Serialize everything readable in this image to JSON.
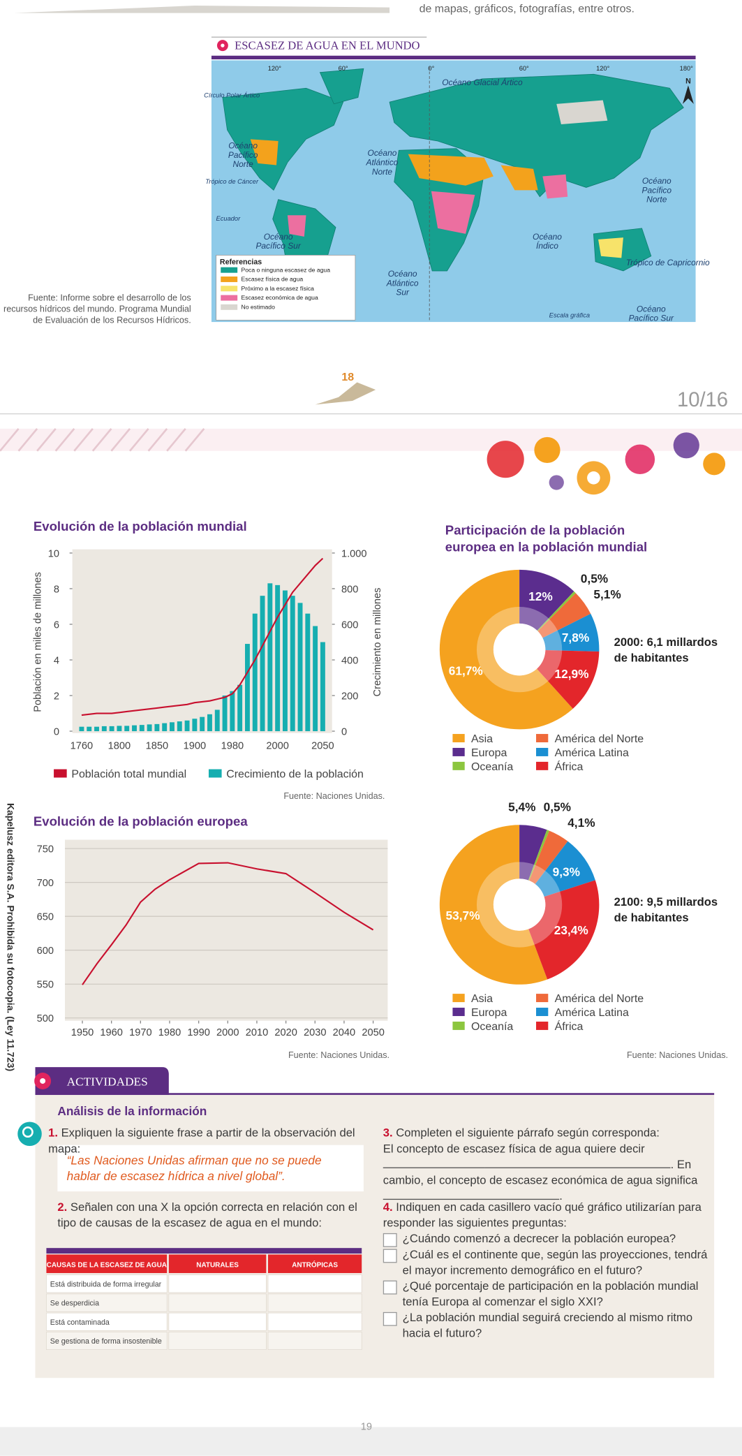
{
  "top_text": "de mapas, gráficos, fotografías, entre otros.",
  "map": {
    "title": "ESCASEZ DE AGUA EN EL MUNDO",
    "labels": [
      [
        "Océano Glacial Ártico"
      ],
      [
        "Círculo Polar Ártico"
      ],
      [
        "Océano",
        "Pacífico",
        "Norte"
      ],
      [
        "Trópico de Cáncer"
      ],
      [
        "Océano",
        "Atlántico",
        "Norte"
      ],
      [
        "Ecuador"
      ],
      [
        "Océano",
        "Pacífico Sur"
      ],
      [
        "Océano",
        "Índico"
      ],
      [
        "Océano",
        "Atlántico",
        "Sur"
      ],
      [
        "Océano",
        "Pacífico",
        "Norte"
      ],
      [
        "Trópico de Capricornio"
      ],
      [
        "Océano",
        "Pacífico Sur"
      ],
      [
        "Escala gráfica"
      ]
    ],
    "degrees": [
      "120°",
      "60°",
      "0°",
      "60°",
      "120°",
      "180°"
    ],
    "north": "N",
    "legend_title": "Referencias",
    "legend": [
      {
        "label": "Poca o ninguna escasez de agua",
        "color": "#16a08f"
      },
      {
        "label": "Escasez física de agua",
        "color": "#f3a21c"
      },
      {
        "label": "Próximo a la escasez física",
        "color": "#f7e36a"
      },
      {
        "label": "Escasez económica de agua",
        "color": "#ec6fa0"
      },
      {
        "label": "No estimado",
        "color": "#d9d6d0"
      }
    ],
    "source": "Fuente: Informe sobre el desarrollo de los recursos hídricos del mundo. Programa Mundial de Evaluación de los Recursos Hídricos."
  },
  "page_left": "18",
  "page_counter": "10/16",
  "page_right": "19",
  "side_note": "Kapelusz editora S.A. Prohibida su fotocopia. (Ley 11.723)",
  "chart_data": [
    {
      "type": "bar_line",
      "title": "Evolución de la población mundial",
      "ylabel": "Población en miles de millones",
      "y2label": "Crecimiento en millones",
      "categories": [
        "1760",
        null,
        null,
        null,
        null,
        "1800",
        null,
        null,
        null,
        null,
        "1850",
        null,
        null,
        null,
        null,
        "1900",
        null,
        null,
        null,
        null,
        "1980",
        null,
        null,
        null,
        null,
        null,
        "2000",
        null,
        null,
        null,
        null,
        null,
        "2050"
      ],
      "ylim": [
        0,
        10
      ],
      "yticks": [
        0,
        2,
        4,
        6,
        8,
        10
      ],
      "y2lim": [
        0,
        1000
      ],
      "y2ticks": [
        0,
        200,
        400,
        600,
        800,
        {
          "value": 1000,
          "label": "1.000"
        }
      ],
      "series": [
        {
          "name": "Población total mundial",
          "type": "line",
          "color": "#c8102e",
          "values": [
            0.9,
            0.95,
            1.0,
            1.0,
            1.0,
            1.05,
            1.1,
            1.15,
            1.2,
            1.25,
            1.3,
            1.35,
            1.4,
            1.45,
            1.5,
            1.6,
            1.65,
            1.7,
            1.8,
            1.9,
            2.1,
            2.6,
            3.3,
            4.0,
            4.8,
            5.6,
            6.4,
            7.1,
            7.8,
            8.3,
            8.8,
            9.3,
            9.7
          ]
        },
        {
          "name": "Crecimiento de la población",
          "type": "bar",
          "axis": "y2",
          "color": "#16aeb0",
          "values": [
            25,
            25,
            25,
            28,
            28,
            30,
            30,
            33,
            35,
            38,
            40,
            45,
            50,
            55,
            60,
            70,
            80,
            95,
            120,
            200,
            225,
            260,
            490,
            660,
            760,
            830,
            820,
            790,
            760,
            720,
            660,
            590,
            500
          ]
        }
      ],
      "source": "Fuente: Naciones Unidas."
    },
    {
      "type": "donut",
      "title": "Participación de la población europea en la población mundial",
      "categories": [
        "Asia",
        "Europa",
        "Oceanía",
        "América del Norte",
        "América Latina",
        "África"
      ],
      "colors": [
        "#f5a21f",
        "#5b2d8e",
        "#8cc63f",
        "#ef6a3a",
        "#1b8fd2",
        "#e3262b"
      ],
      "values": [
        61.7,
        12,
        0.5,
        5.1,
        7.8,
        12.9
      ],
      "value_labels": [
        "61,7%",
        "12%",
        "0,5%",
        "5,1%",
        "7,8%",
        "12,9%"
      ],
      "annotation": [
        "2000: 6,1 millardos",
        "de habitantes"
      ]
    },
    {
      "type": "donut",
      "categories": [
        "Asia",
        "Europa",
        "Oceanía",
        "América del Norte",
        "América Latina",
        "África"
      ],
      "colors": [
        "#f5a21f",
        "#5b2d8e",
        "#8cc63f",
        "#ef6a3a",
        "#1b8fd2",
        "#e3262b"
      ],
      "values": [
        53.7,
        5.4,
        0.5,
        4.1,
        9.3,
        23.4
      ],
      "value_labels": [
        "53,7%",
        "5,4%",
        "0,5%",
        "4,1%",
        "9,3%",
        "23,4%"
      ],
      "annotation": [
        "2100: 9,5 millardos",
        "de habitantes"
      ],
      "source": "Fuente: Naciones Unidas."
    },
    {
      "type": "line",
      "title": "Evolución de la población europea",
      "x": [
        1950,
        1955,
        1960,
        1965,
        1970,
        1975,
        1980,
        1990,
        2000,
        2010,
        2020,
        2030,
        2040,
        2050
      ],
      "values": [
        549,
        580,
        608,
        637,
        671,
        690,
        704,
        728,
        729,
        720,
        713,
        685,
        656,
        630
      ],
      "color": "#c8102e",
      "xlim": [
        1944,
        2055
      ],
      "xticks": [
        1950,
        1960,
        1970,
        1980,
        1990,
        2000,
        2010,
        2020,
        2030,
        2040,
        2050
      ],
      "ylim": [
        496,
        763
      ],
      "yticks": [
        500,
        550,
        600,
        650,
        700,
        750
      ],
      "grid": true,
      "source": "Fuente: Naciones Unidas."
    }
  ],
  "activities": {
    "header": "ACTIVIDADES",
    "subtitle": "Análisis de la información",
    "q1": {
      "number": "1.",
      "text": "Expliquen la siguiente frase a partir de la observación del mapa:",
      "quote": "“Las Naciones Unidas afirman que no se puede hablar de escasez hídrica a nivel global”."
    },
    "q2": {
      "number": "2.",
      "text": "Señalen con una X la opción correcta en relación con el tipo de causas de la escasez de agua en el mundo:"
    },
    "table": {
      "header": [
        "CAUSAS DE LA ESCASEZ DE AGUA",
        "NATURALES",
        "ANTRÓPICAS"
      ],
      "rows": [
        "Está distribuida de forma irregular",
        "Se desperdicia",
        "Está contaminada",
        "Se gestiona de forma insostenible"
      ]
    },
    "q3": {
      "number": "3.",
      "text": "Completen el siguiente párrafo según corresponda:",
      "parts": [
        "El concepto de escasez física de agua quiere decir",
        ". En cambio, el concepto de escasez económica de agua significa",
        "."
      ]
    },
    "q4": {
      "number": "4.",
      "text": "Indiquen en cada casillero vacío qué gráfico utilizarían para responder las siguientes preguntas:",
      "options": [
        "¿Cuándo comenzó a decrecer la población europea?",
        "¿Cuál es el continente que, según las proyecciones, tendrá el mayor incremento demográfico en el futuro?",
        "¿Qué porcentaje de participación en la población mundial tenía Europa al comenzar el siglo XXI?",
        "¿La población mundial seguirá creciendo al mismo ritmo hacia el futuro?"
      ]
    }
  }
}
